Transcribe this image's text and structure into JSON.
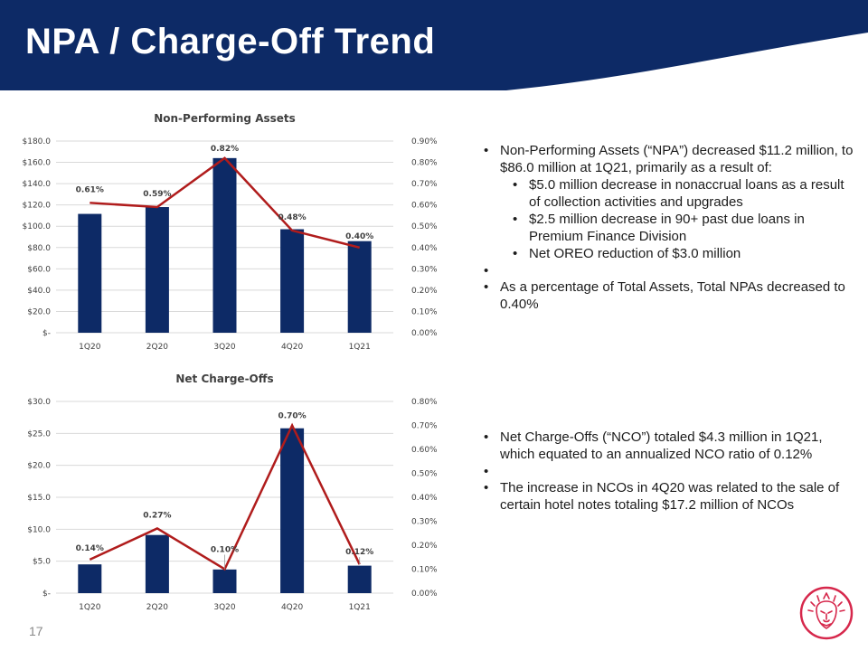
{
  "slide": {
    "title": "NPA / Charge-Off Trend",
    "page_number": "17",
    "colors": {
      "header": "#0d2a66",
      "bar": "#0d2a66",
      "line": "#b01c1c",
      "accent_logo": "#d6274b"
    }
  },
  "npa_text": {
    "b1": "Non-Performing Assets (“NPA”) decreased $11.2 million, to $86.0 million at 1Q21, primarily as a result of:",
    "s1": "$5.0 million decrease in nonaccrual loans as a result of collection activities and upgrades",
    "s2": "$2.5 million decrease in 90+ past due loans in Premium Finance Division",
    "s3": "Net OREO reduction of $3.0 million",
    "b2": "As a percentage of Total Assets, Total NPAs decreased to 0.40%"
  },
  "nco_text": {
    "b1": "Net Charge-Offs (“NCO”) totaled $4.3 million in 1Q21, which equated to an annualized NCO ratio of 0.12%",
    "b2": "The increase in NCOs in 4Q20 was related to the sale of certain hotel notes totaling $17.2 million of NCOs"
  },
  "chart_data": [
    {
      "type": "bar",
      "title": "Non-Performing Assets",
      "categories": [
        "1Q20",
        "2Q20",
        "3Q20",
        "4Q20",
        "1Q21"
      ],
      "bar_values": [
        111.6,
        118.0,
        164.0,
        97.2,
        86.0
      ],
      "line_values": [
        0.61,
        0.59,
        0.82,
        0.48,
        0.4
      ],
      "line_labels": [
        "0.61%",
        "0.59%",
        "0.82%",
        "0.48%",
        "0.40%"
      ],
      "y_left_ticks": [
        "$-",
        "$20.0",
        "$40.0",
        "$60.0",
        "$80.0",
        "$100.0",
        "$120.0",
        "$140.0",
        "$160.0",
        "$180.0"
      ],
      "y_right_ticks": [
        "0.00%",
        "0.10%",
        "0.20%",
        "0.30%",
        "0.40%",
        "0.50%",
        "0.60%",
        "0.70%",
        "0.80%",
        "0.90%"
      ],
      "ylim_left": [
        0,
        180
      ],
      "ylim_right": [
        0,
        0.9
      ]
    },
    {
      "type": "bar",
      "title": "Net Charge-Offs",
      "categories": [
        "1Q20",
        "2Q20",
        "3Q20",
        "4Q20",
        "1Q21"
      ],
      "bar_values": [
        4.5,
        9.1,
        3.7,
        25.8,
        4.3
      ],
      "line_values": [
        0.14,
        0.27,
        0.1,
        0.7,
        0.12
      ],
      "line_labels": [
        "0.14%",
        "0.27%",
        "0.10%",
        "0.70%",
        "0.12%"
      ],
      "y_left_ticks": [
        "$-",
        "$5.0",
        "$10.0",
        "$15.0",
        "$20.0",
        "$25.0",
        "$30.0"
      ],
      "y_right_ticks": [
        "0.00%",
        "0.10%",
        "0.20%",
        "0.30%",
        "0.40%",
        "0.50%",
        "0.60%",
        "0.70%",
        "0.80%"
      ],
      "ylim_left": [
        0,
        30
      ],
      "ylim_right": [
        0,
        0.8
      ]
    }
  ]
}
